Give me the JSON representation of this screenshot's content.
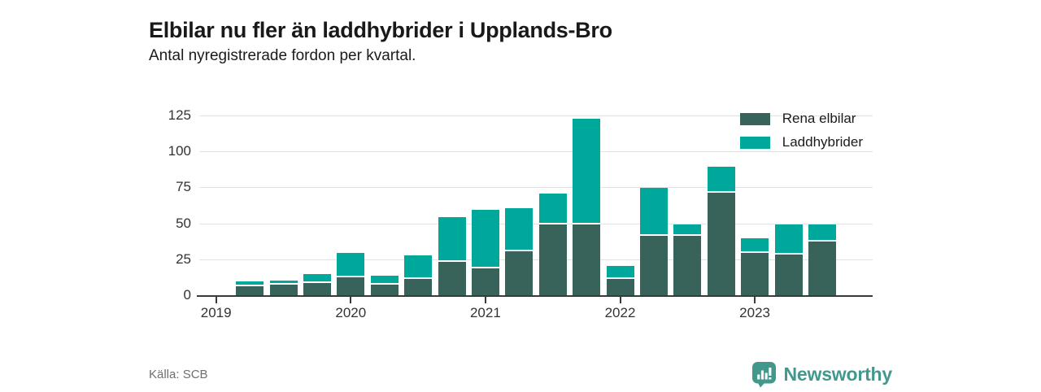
{
  "chart_data": {
    "type": "bar",
    "stacked": true,
    "title": "Elbilar nu fler än laddhybrider i Upplands-Bro",
    "subtitle": "Antal nyregistrerade fordon per kvartal.",
    "categories": [
      "2019 Q1",
      "2019 Q2",
      "2019 Q3",
      "2019 Q4",
      "2020 Q1",
      "2020 Q2",
      "2020 Q3",
      "2020 Q4",
      "2021 Q1",
      "2021 Q2",
      "2021 Q3",
      "2021 Q4",
      "2022 Q1",
      "2022 Q2",
      "2022 Q3",
      "2022 Q4",
      "2023 Q1",
      "2023 Q2",
      "2023 Q3",
      "2023 Q4"
    ],
    "series": [
      {
        "name": "Rena elbilar",
        "color": "#38635a",
        "values": [
          0,
          7,
          8,
          9,
          13,
          8,
          12,
          24,
          19,
          31,
          50,
          50,
          12,
          42,
          42,
          72,
          30,
          29,
          38,
          0
        ]
      },
      {
        "name": "Laddhybrider",
        "color": "#00a79b",
        "values": [
          0,
          3,
          3,
          6,
          17,
          6,
          16,
          31,
          41,
          30,
          21,
          73,
          9,
          33,
          8,
          18,
          10,
          21,
          12,
          0
        ]
      }
    ],
    "ylim": [
      0,
      125
    ],
    "yticks": [
      0,
      25,
      50,
      75,
      100,
      125
    ],
    "year_ticks": [
      {
        "label": "2019",
        "slot": 0
      },
      {
        "label": "2020",
        "slot": 4
      },
      {
        "label": "2021",
        "slot": 8
      },
      {
        "label": "2022",
        "slot": 12
      },
      {
        "label": "2023",
        "slot": 16
      }
    ],
    "grid": "horizontal",
    "legend_position": "top-right"
  },
  "footer": {
    "source": "Källa: SCB",
    "brand": "Newsworthy",
    "brand_color": "#43988e"
  }
}
